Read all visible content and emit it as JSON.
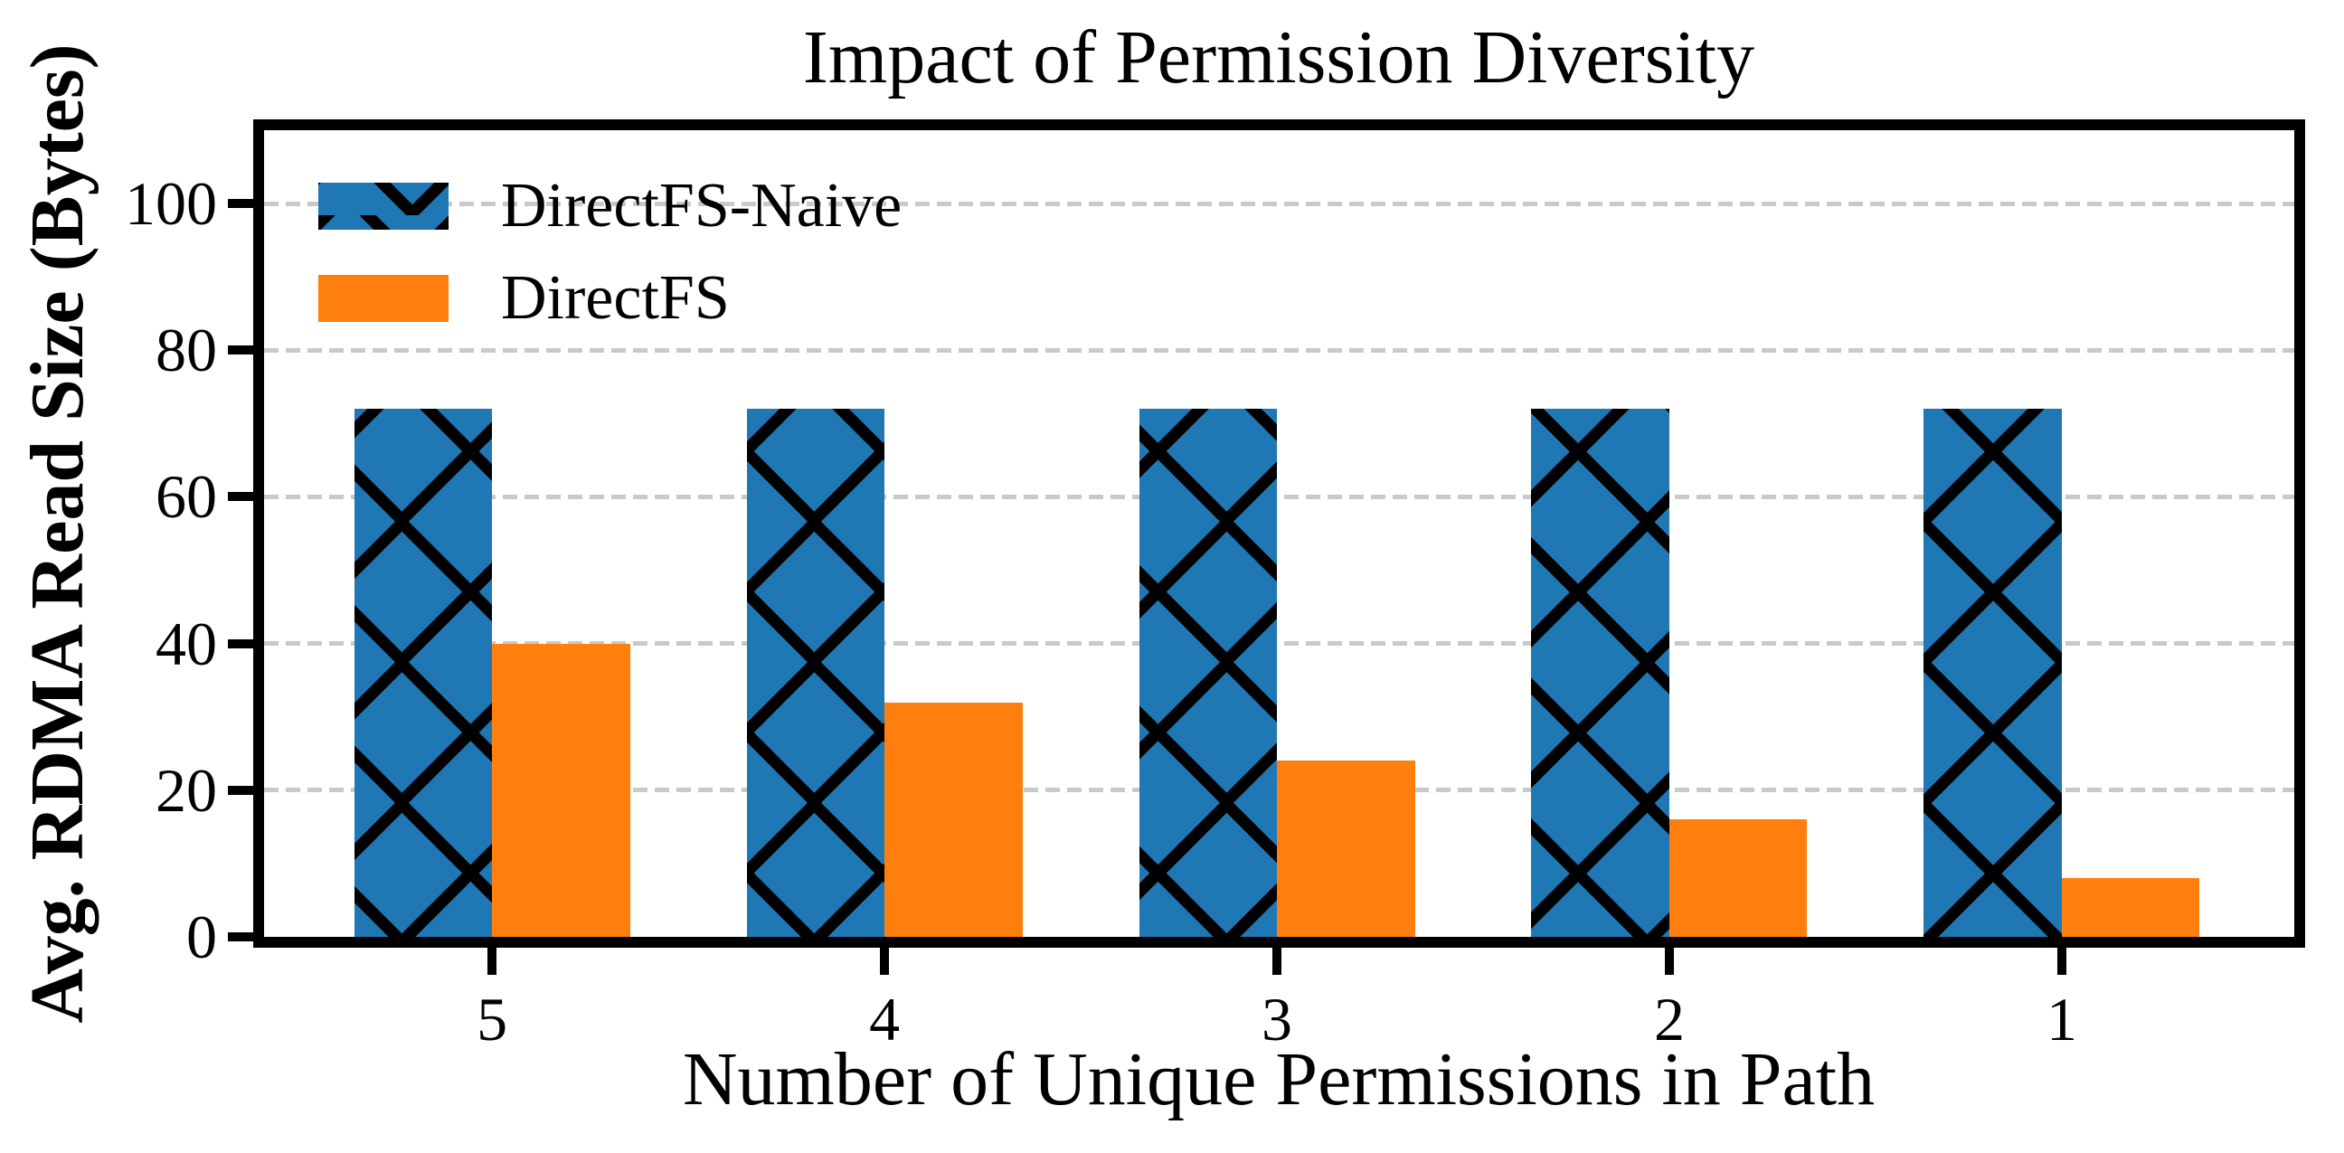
{
  "chart_data": {
    "type": "bar",
    "title": "Impact of Permission Diversity",
    "xlabel": "Number of Unique Permissions in Path",
    "ylabel": "Avg. RDMA Read Size (Bytes)",
    "categories": [
      "5",
      "4",
      "3",
      "2",
      "1"
    ],
    "series": [
      {
        "name": "DirectFS-Naive",
        "color": "#1f77b4",
        "hatch": "X",
        "values": [
          72,
          72,
          72,
          72,
          72
        ]
      },
      {
        "name": "DirectFS",
        "color": "#ff7f0e",
        "hatch": null,
        "values": [
          40,
          32,
          24,
          16,
          8
        ]
      }
    ],
    "ylim": [
      0,
      110
    ],
    "yticks": [
      0,
      20,
      40,
      60,
      80,
      100
    ],
    "grid": "horizontal-dashed",
    "grid_color": "#c9c9c9",
    "legend_position": "upper-left",
    "legend_frame": false
  }
}
